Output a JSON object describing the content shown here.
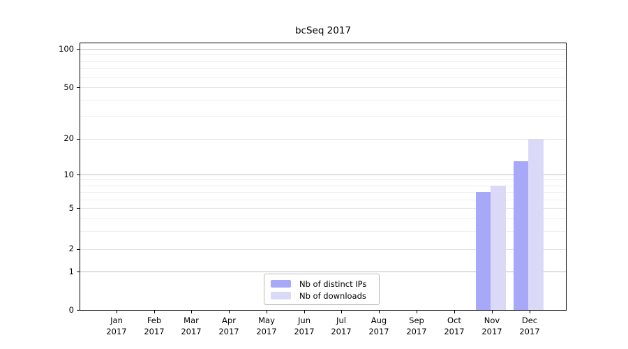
{
  "figure": {
    "background": "#ffffff"
  },
  "chart_data": {
    "type": "bar",
    "title": "bcSeq 2017",
    "xlabel": "",
    "ylabel": "",
    "months": [
      "Jan",
      "Feb",
      "Mar",
      "Apr",
      "May",
      "Jun",
      "Jul",
      "Aug",
      "Sep",
      "Oct",
      "Nov",
      "Dec"
    ],
    "year": "2017",
    "series": [
      {
        "name": "Nb of distinct IPs",
        "color": "#a8a8f8",
        "values": [
          0,
          0,
          0,
          0,
          0,
          0,
          0,
          0,
          0,
          0,
          7,
          13
        ]
      },
      {
        "name": "Nb of downloads",
        "color": "#dadaf8",
        "values": [
          0,
          0,
          0,
          0,
          0,
          0,
          0,
          0,
          0,
          0,
          8,
          20
        ]
      }
    ],
    "y_axis": {
      "scale": "log-like",
      "ylim": [
        0,
        100
      ],
      "tick_values": [
        0,
        1,
        2,
        5,
        10,
        20,
        50,
        100
      ],
      "power_of_ten_lines": [
        1,
        10,
        100
      ],
      "labeled_mid_lines": [
        2,
        5,
        20,
        50
      ],
      "minor_lines": [
        3,
        4,
        6,
        7,
        8,
        9,
        30,
        40,
        60,
        70,
        80,
        90
      ]
    },
    "grid": true,
    "legend_position": "bottom-center",
    "colors": {
      "major_grid": "#bcbcbc",
      "mid_grid": "#e3e3e3",
      "minor_grid": "#eeeeee",
      "spine": "#000000"
    }
  }
}
